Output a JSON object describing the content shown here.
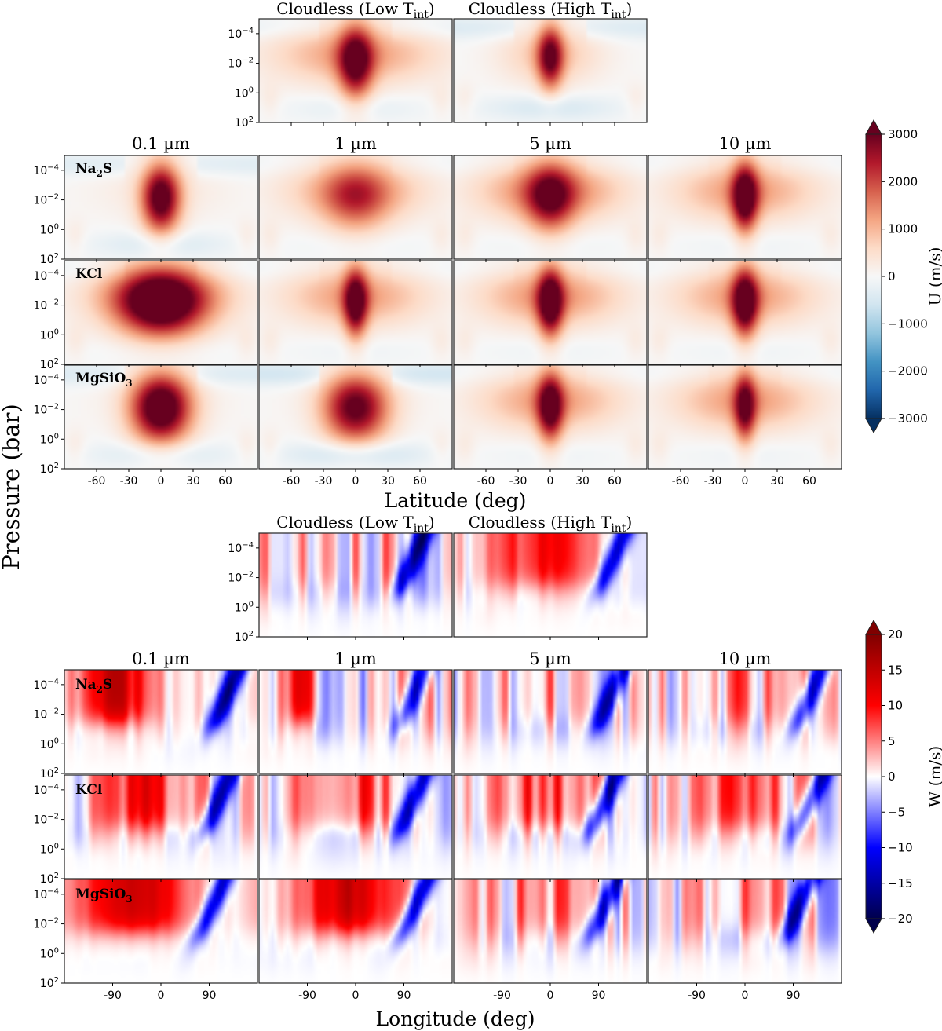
{
  "figure": {
    "ylabel": "Pressure (bar)",
    "units_label_u": "U (m/s)",
    "units_label_w": "W (m/s)"
  },
  "chart_data": [
    {
      "type": "heatmap",
      "id": "zonal_wind",
      "variable": "U",
      "unit": "m/s",
      "xlabel": "Latitude (deg)",
      "x_ticks": [
        -60,
        -30,
        0,
        30,
        60
      ],
      "x_tick_labels": [
        "-60",
        "-30",
        "0",
        "30",
        "60"
      ],
      "xlim": [
        -90,
        90
      ],
      "ylim_bar": [
        100,
        1e-05
      ],
      "y_scale": "log",
      "y_ticks": [
        0.0001,
        0.01,
        1,
        100
      ],
      "y_tick_labels": [
        {
          "base": "10",
          "exp": "−4"
        },
        {
          "base": "10",
          "exp": "−2"
        },
        {
          "base": "10",
          "exp": "0"
        },
        {
          "base": "10",
          "exp": "2"
        }
      ],
      "colorbar": {
        "cmap": "RdBu_r",
        "min": -3000,
        "max": 3000,
        "extend": "both",
        "ticks": [
          3000,
          2000,
          1000,
          0,
          -1000,
          -2000,
          -3000
        ],
        "tick_labels": [
          "3000",
          "2000",
          "1000",
          "0",
          "−1000",
          "−2000",
          "−3000"
        ]
      },
      "top_panels": [
        {
          "title_main": "Cloudless (Low T",
          "title_sub": "int",
          "title_end": ")",
          "jet": {
            "peak": 2600,
            "width_deg": 16,
            "broad": 1300,
            "broad_width_deg": 75,
            "p_center": -2.0,
            "p_span": 2.6,
            "neg": -300
          }
        },
        {
          "title_main": "Cloudless (High T",
          "title_sub": "int",
          "title_end": ")",
          "jet": {
            "peak": 2500,
            "width_deg": 12,
            "broad": 900,
            "broad_width_deg": 45,
            "p_center": -2.4,
            "p_span": 2.2,
            "neg": -500
          }
        }
      ],
      "columns": [
        "0.1 µm",
        "1 µm",
        "5 µm",
        "10 µm"
      ],
      "rows": [
        {
          "label": "Na",
          "sub": "2",
          "rest": "S"
        },
        {
          "label": "KCl",
          "sub": "",
          "rest": ""
        },
        {
          "label": "MgSiO",
          "sub": "3",
          "rest": ""
        }
      ],
      "grid_peaks": [
        [
          {
            "peak": 3200,
            "width_deg": 18,
            "broad": 300,
            "neg": -450
          },
          {
            "peak": 1400,
            "width_deg": 30,
            "broad": 1200,
            "neg": -150
          },
          {
            "peak": 2100,
            "width_deg": 22,
            "broad": 1600,
            "neg": -150
          },
          {
            "peak": 2900,
            "width_deg": 12,
            "broad": 1300,
            "neg": -150
          }
        ],
        [
          {
            "peak": 3000,
            "width_deg": 40,
            "broad": 1500,
            "neg": -200
          },
          {
            "peak": 2700,
            "width_deg": 11,
            "broad": 1300,
            "neg": -150
          },
          {
            "peak": 2900,
            "width_deg": 12,
            "broad": 1400,
            "neg": -150
          },
          {
            "peak": 2900,
            "width_deg": 12,
            "broad": 1300,
            "neg": -150
          }
        ],
        [
          {
            "peak": 3600,
            "width_deg": 28,
            "broad": 200,
            "neg": -500
          },
          {
            "peak": 3000,
            "width_deg": 30,
            "broad": 200,
            "neg": -700
          },
          {
            "peak": 2700,
            "width_deg": 12,
            "broad": 1300,
            "neg": -150
          },
          {
            "peak": 2400,
            "width_deg": 10,
            "broad": 1300,
            "neg": -150
          }
        ]
      ]
    },
    {
      "type": "heatmap",
      "id": "vertical_wind",
      "variable": "W",
      "unit": "m/s",
      "xlabel": "Longitude (deg)",
      "x_ticks": [
        -90,
        0,
        90
      ],
      "x_tick_labels": [
        "-90",
        "0",
        "90"
      ],
      "xlim": [
        -180,
        180
      ],
      "ylim_bar": [
        100,
        1e-05
      ],
      "y_scale": "log",
      "y_ticks": [
        0.0001,
        0.01,
        1,
        100
      ],
      "y_tick_labels": [
        {
          "base": "10",
          "exp": "−4"
        },
        {
          "base": "10",
          "exp": "−2"
        },
        {
          "base": "10",
          "exp": "0"
        },
        {
          "base": "10",
          "exp": "2"
        }
      ],
      "colorbar": {
        "cmap": "seismic",
        "min": -20,
        "max": 20,
        "extend": "both",
        "ticks": [
          20,
          15,
          10,
          5,
          0,
          -5,
          -10,
          -15,
          -20
        ],
        "tick_labels": [
          "20",
          "15",
          "10",
          "5",
          "0",
          "−5",
          "−10",
          "−15",
          "−20"
        ]
      },
      "top_panels": [
        {
          "title_main": "Cloudless (Low T",
          "title_sub": "int",
          "title_end": ")",
          "up": {
            "lon": -60,
            "width": 120,
            "amp": 3
          },
          "down": {
            "lon": 110,
            "amp": -14
          },
          "noise": 7
        },
        {
          "title_main": "Cloudless (High T",
          "title_sub": "int",
          "title_end": ")",
          "up": {
            "lon": -15,
            "width": 110,
            "amp": 9
          },
          "down": {
            "lon": 120,
            "amp": -13
          },
          "noise": 3
        }
      ],
      "columns": [
        "0.1 µm",
        "1 µm",
        "5 µm",
        "10 µm"
      ],
      "rows": [
        {
          "label": "Na",
          "sub": "2",
          "rest": "S"
        },
        {
          "label": "KCl",
          "sub": "",
          "rest": ""
        },
        {
          "label": "MgSiO",
          "sub": "3",
          "rest": ""
        }
      ],
      "grid_cells": [
        [
          {
            "up_lon": -90,
            "up_w": 70,
            "up_amp": 14,
            "down_lon": 125,
            "down_amp": -16,
            "noise": 3
          },
          {
            "up_lon": -100,
            "up_w": 30,
            "up_amp": 12,
            "down_lon": 110,
            "down_amp": -12,
            "noise": 7
          },
          {
            "up_lon": 0,
            "up_w": 90,
            "up_amp": 4,
            "down_lon": 115,
            "down_amp": -13,
            "noise": 6
          },
          {
            "up_lon": 0,
            "up_w": 90,
            "up_amp": 4,
            "down_lon": 125,
            "down_amp": -13,
            "noise": 6
          }
        ],
        [
          {
            "up_lon": -30,
            "up_w": 90,
            "up_amp": 9,
            "down_lon": 110,
            "down_amp": -14,
            "noise": 5
          },
          {
            "up_lon": -20,
            "up_w": 100,
            "up_amp": 8,
            "down_lon": 110,
            "down_amp": -14,
            "noise": 5
          },
          {
            "up_lon": -10,
            "up_w": 100,
            "up_amp": 8,
            "down_lon": 105,
            "down_amp": -15,
            "noise": 5
          },
          {
            "up_lon": 0,
            "up_w": 90,
            "up_amp": 7,
            "down_lon": 125,
            "down_amp": -13,
            "noise": 6
          }
        ],
        [
          {
            "up_lon": -50,
            "up_w": 110,
            "up_amp": 14,
            "down_lon": 100,
            "down_amp": -14,
            "noise": 1
          },
          {
            "up_lon": -10,
            "up_w": 100,
            "up_amp": 14,
            "down_lon": 115,
            "down_amp": -15,
            "noise": 2
          },
          {
            "up_lon": 0,
            "up_w": 90,
            "up_amp": 5,
            "down_lon": 105,
            "down_amp": -14,
            "noise": 6
          },
          {
            "up_lon": 0,
            "up_w": 90,
            "up_amp": 5,
            "down_lon": 105,
            "down_amp": -14,
            "noise": 6
          }
        ]
      ]
    }
  ]
}
